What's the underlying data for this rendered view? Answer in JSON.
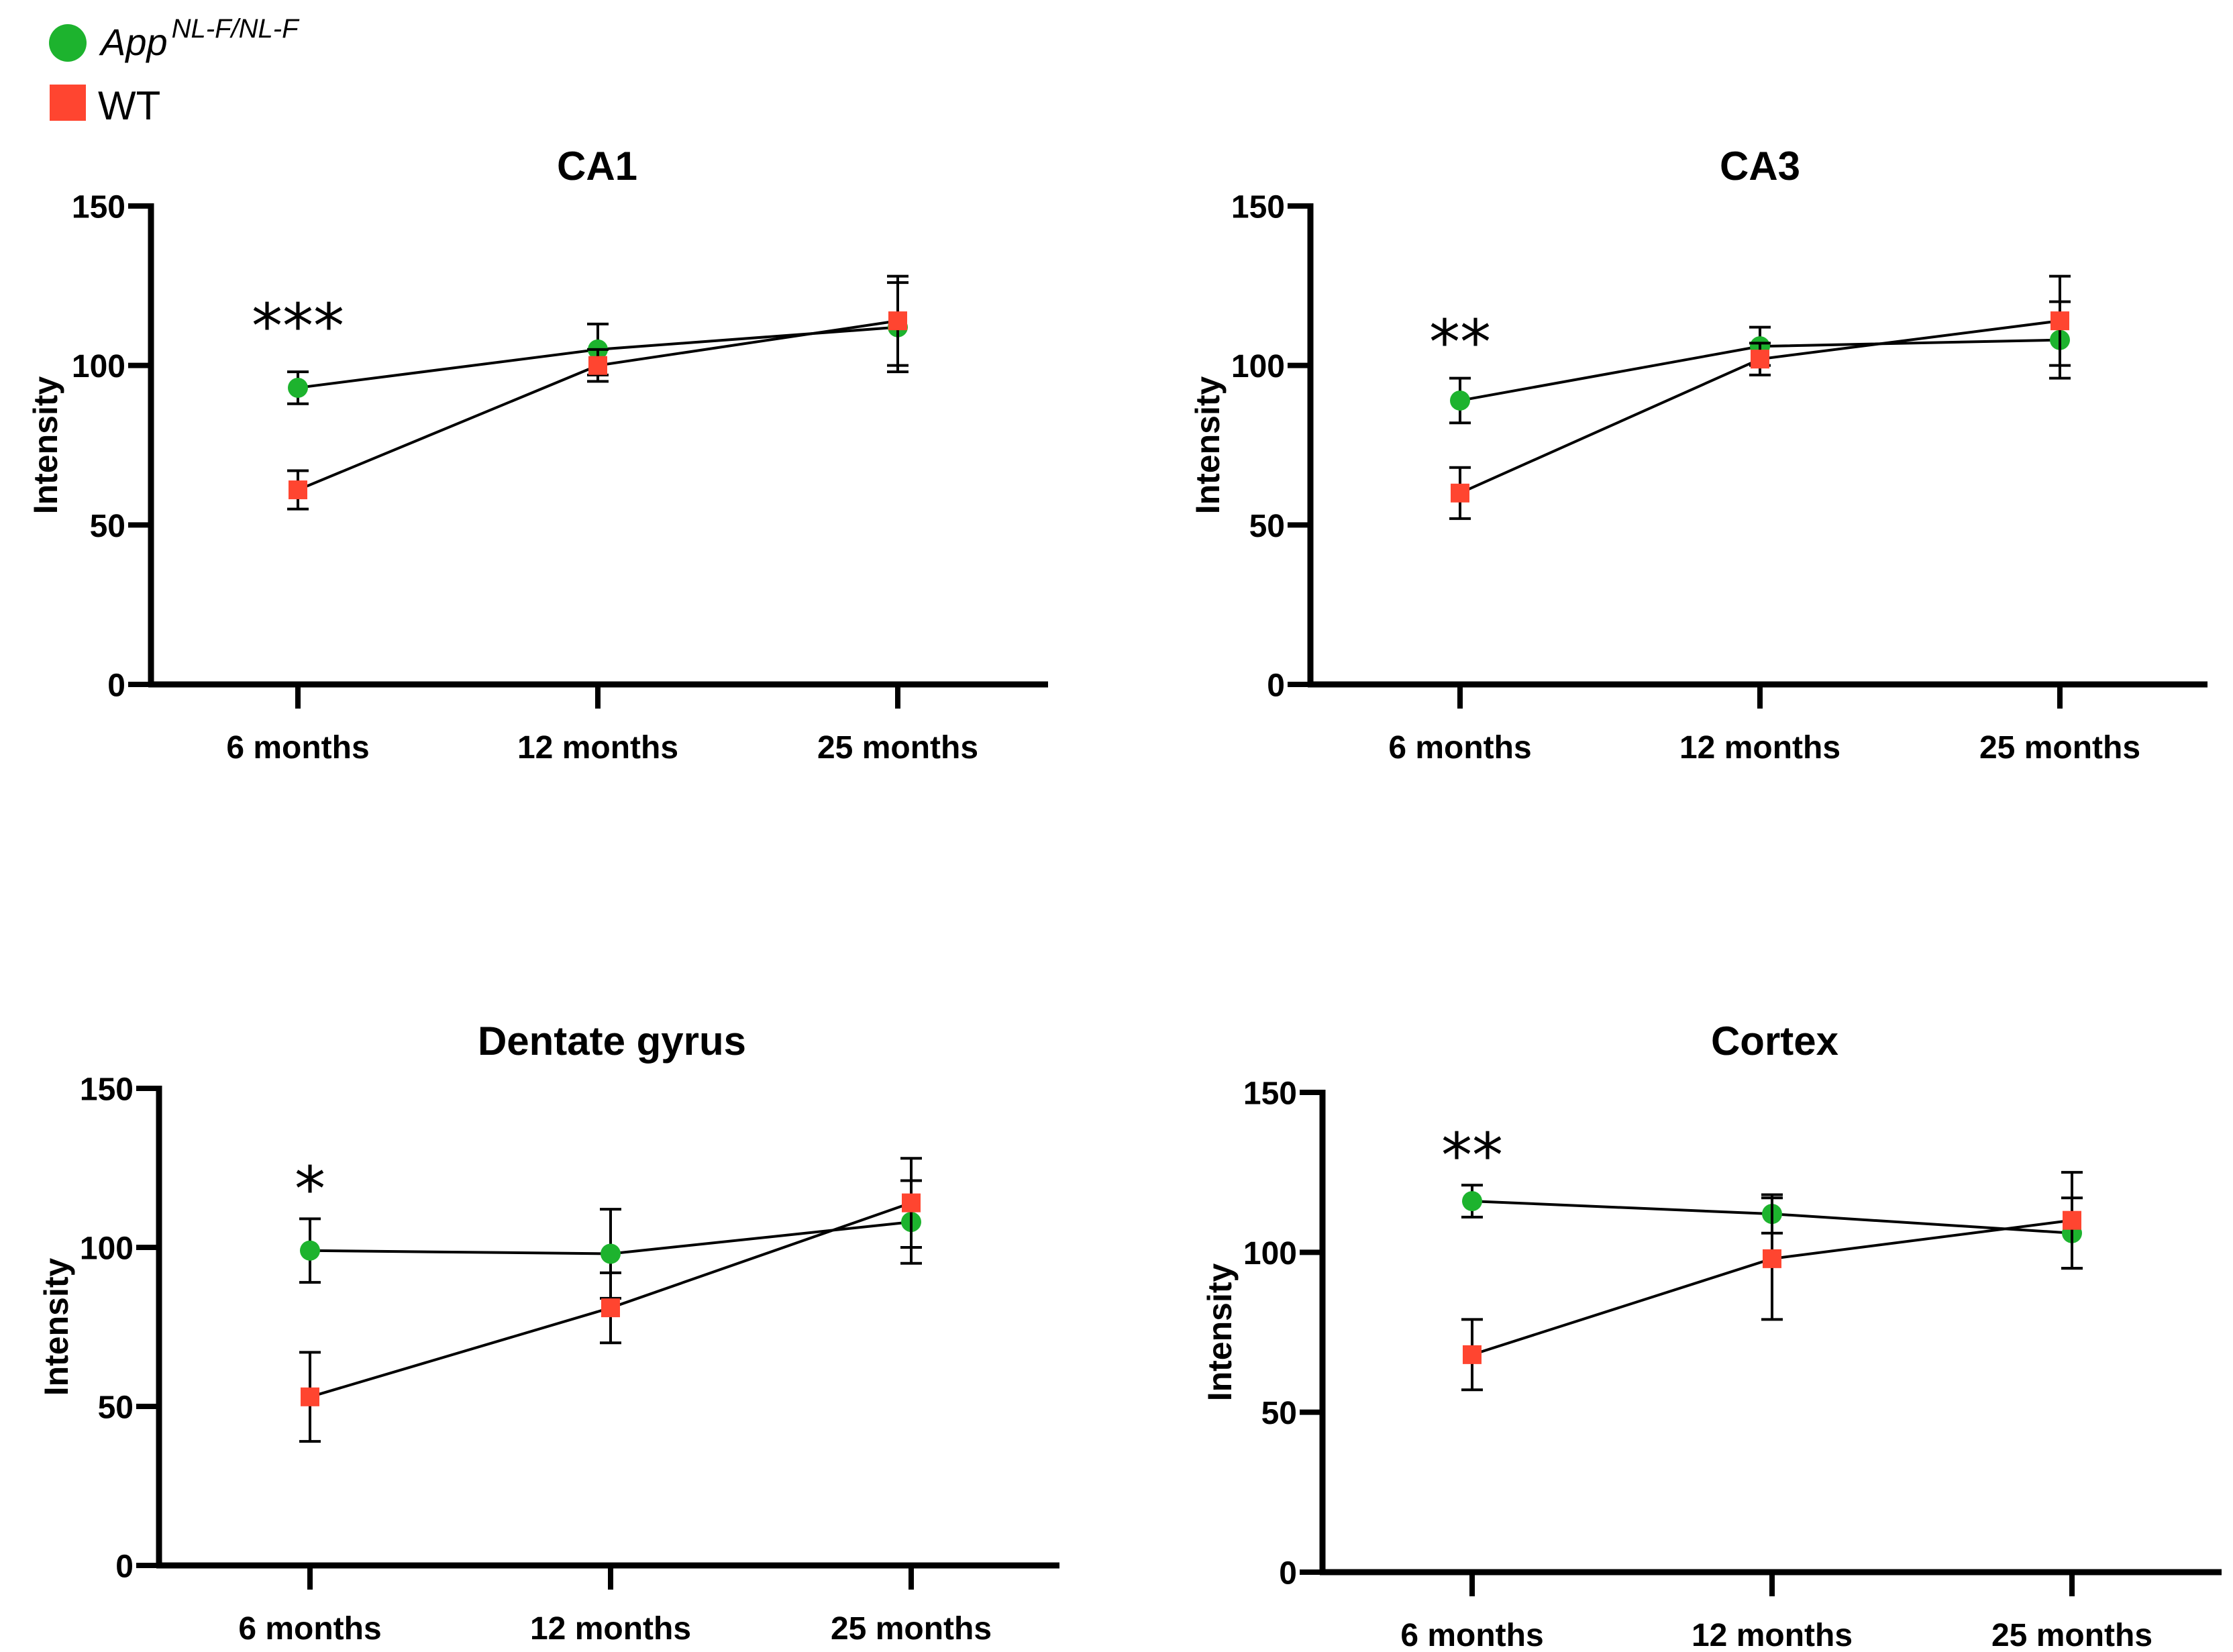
{
  "legend": {
    "items": [
      {
        "name": "App",
        "superscript": "NL-F/NL-F",
        "color": "#1db32e",
        "marker": "circle"
      },
      {
        "name": "WT",
        "superscript": "",
        "color": "#ff4530",
        "marker": "square"
      }
    ]
  },
  "chart_data": [
    {
      "type": "line",
      "title": "CA1",
      "xlabel": "",
      "ylabel": "Intensity",
      "categories": [
        "6 months",
        "12 months",
        "25 months"
      ],
      "ylim": [
        0,
        150
      ],
      "yticks": [
        0,
        50,
        100,
        150
      ],
      "series": [
        {
          "name": "App NL-F/NL-F",
          "color": "#1db32e",
          "marker": "circle",
          "values": [
            93,
            105,
            112
          ],
          "errors": [
            5,
            8,
            14
          ]
        },
        {
          "name": "WT",
          "color": "#ff4530",
          "marker": "square",
          "values": [
            61,
            100,
            114
          ],
          "errors": [
            6,
            5,
            14
          ]
        }
      ],
      "annotations": [
        {
          "category": "6 months",
          "text": "***",
          "y": 114
        }
      ]
    },
    {
      "type": "line",
      "title": "CA3",
      "xlabel": "",
      "ylabel": "Intensity",
      "categories": [
        "6 months",
        "12 months",
        "25 months"
      ],
      "ylim": [
        0,
        150
      ],
      "yticks": [
        0,
        50,
        100,
        150
      ],
      "series": [
        {
          "name": "App NL-F/NL-F",
          "color": "#1db32e",
          "marker": "circle",
          "values": [
            89,
            106,
            108
          ],
          "errors": [
            7,
            6,
            12
          ]
        },
        {
          "name": "WT",
          "color": "#ff4530",
          "marker": "square",
          "values": [
            60,
            102,
            114
          ],
          "errors": [
            8,
            5,
            14
          ]
        }
      ],
      "annotations": [
        {
          "category": "6 months",
          "text": "**",
          "y": 109
        }
      ]
    },
    {
      "type": "line",
      "title": "Dentate gyrus",
      "xlabel": "",
      "ylabel": "Intensity",
      "categories": [
        "6 months",
        "12 months",
        "25 months"
      ],
      "ylim": [
        0,
        150
      ],
      "yticks": [
        0,
        50,
        100,
        150
      ],
      "series": [
        {
          "name": "App NL-F/NL-F",
          "color": "#1db32e",
          "marker": "circle",
          "values": [
            99,
            98,
            108
          ],
          "errors": [
            10,
            14,
            13
          ]
        },
        {
          "name": "WT",
          "color": "#ff4530",
          "marker": "square",
          "values": [
            53,
            81,
            114
          ],
          "errors": [
            14,
            11,
            14
          ]
        }
      ],
      "annotations": [
        {
          "category": "6 months",
          "text": "*",
          "y": 120
        }
      ]
    },
    {
      "type": "line",
      "title": "Cortex",
      "xlabel": "",
      "ylabel": "Intensity",
      "categories": [
        "6 months",
        "12 months",
        "25 months"
      ],
      "ylim": [
        0,
        150
      ],
      "yticks": [
        0,
        50,
        100,
        150
      ],
      "series": [
        {
          "name": "App NL-F/NL-F",
          "color": "#1db32e",
          "marker": "circle",
          "values": [
            116,
            112,
            106
          ],
          "errors": [
            5,
            6,
            11
          ]
        },
        {
          "name": "WT",
          "color": "#ff4530",
          "marker": "square",
          "values": [
            68,
            98,
            110
          ],
          "errors": [
            11,
            19,
            15
          ]
        }
      ],
      "annotations": [
        {
          "category": "6 months",
          "text": "**",
          "y": 132
        }
      ]
    }
  ]
}
